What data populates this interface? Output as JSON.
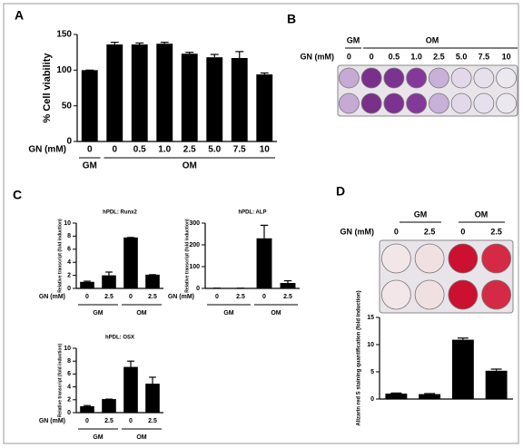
{
  "panel_labels": [
    "A",
    "B",
    "C",
    "D"
  ],
  "plate_b": {
    "groups": [
      "GM",
      "OM"
    ],
    "x_label": "GN (mM)",
    "doses": [
      "0",
      "0",
      "0.5",
      "1.0",
      "2.5",
      "5.0",
      "7.5",
      "10"
    ]
  },
  "plate_d": {
    "groups": [
      "GM",
      "OM"
    ],
    "x_label": "GN (mM)",
    "doses": [
      "0",
      "2.5",
      "0",
      "2.5"
    ]
  },
  "chart_data": [
    {
      "type": "bar",
      "y_label": "% Cell viability",
      "x_label": "GN (mM)",
      "groups": [
        "GM",
        "OM"
      ],
      "categories": [
        "0",
        "0",
        "0.5",
        "1.0",
        "2.5",
        "5.0",
        "7.5",
        "10"
      ],
      "values": [
        100,
        136,
        136,
        137,
        123,
        118,
        117,
        94
      ],
      "errors": [
        0,
        3,
        2,
        2,
        2,
        4,
        9,
        2
      ],
      "color": "#000000",
      "ylim": [
        0,
        150
      ],
      "yticks": [
        0,
        50,
        100,
        150
      ]
    },
    {
      "type": "bar",
      "title": "hPDL: Runx2",
      "y_label": "Relative transcript (fold induction)",
      "x_label": "GN (mM)",
      "groups": [
        "GM",
        "OM"
      ],
      "categories": [
        "0",
        "2.5",
        "0",
        "2.5"
      ],
      "values": [
        1.0,
        2.0,
        7.8,
        2.1
      ],
      "errors": [
        0.1,
        0.5,
        0,
        0
      ],
      "color": "#000000",
      "ylim": [
        0,
        10
      ],
      "yticks": [
        0,
        2,
        4,
        6,
        8,
        10
      ]
    },
    {
      "type": "bar",
      "title": "hPDL: ALP",
      "y_label": "Relative transcript (fold induction)",
      "x_label": "GN (mM)",
      "groups": [
        "GM",
        "OM"
      ],
      "categories": [
        "0",
        "2.5",
        "0",
        "2.5"
      ],
      "values": [
        1,
        1,
        230,
        25
      ],
      "errors": [
        0,
        0,
        60,
        10
      ],
      "color": "#000000",
      "ylim": [
        0,
        300
      ],
      "yticks": [
        0,
        100,
        200,
        300
      ]
    },
    {
      "type": "bar",
      "title": "hPDL: OSX",
      "y_label": "Relative transcript (fold induction)",
      "x_label": "GN (mM)",
      "groups": [
        "GM",
        "OM"
      ],
      "categories": [
        "0",
        "2.5",
        "0",
        "2.5"
      ],
      "values": [
        1.0,
        2.1,
        7.1,
        4.5
      ],
      "errors": [
        0.1,
        0,
        0.9,
        1.0
      ],
      "color": "#000000",
      "ylim": [
        0,
        10
      ],
      "yticks": [
        0,
        2,
        4,
        6,
        8,
        10
      ]
    },
    {
      "type": "bar",
      "y_label": "Alizarin red S staining quantification (fold induction)",
      "categories": [
        null,
        null,
        null,
        null
      ],
      "values": [
        1.0,
        0.9,
        10.9,
        5.2
      ],
      "errors": [
        0.1,
        0.1,
        0.3,
        0.3
      ],
      "color": "#000000",
      "ylim": [
        0,
        15
      ],
      "yticks": [
        0,
        5,
        10,
        15
      ]
    }
  ]
}
